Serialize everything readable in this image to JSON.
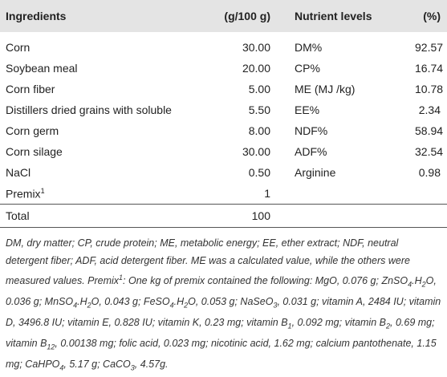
{
  "table": {
    "header": [
      "Ingredients",
      "(g/100 g)",
      "Nutrient levels",
      "(%)"
    ],
    "rows": [
      {
        "ingredient": "Corn",
        "amount": "30.00",
        "nutrient": "DM%",
        "level": "92.57"
      },
      {
        "ingredient": "Soybean meal",
        "amount": "20.00",
        "nutrient": "CP%",
        "level": "16.74"
      },
      {
        "ingredient": "Corn fiber",
        "amount": "5.00",
        "nutrient": "ME (MJ /kg)",
        "level": "10.78"
      },
      {
        "ingredient": "Distillers dried grains with soluble",
        "amount": "5.50",
        "nutrient": "EE%",
        "level": "2.34"
      },
      {
        "ingredient": "Corn germ",
        "amount": "8.00",
        "nutrient": "NDF%",
        "level": "58.94"
      },
      {
        "ingredient": "Corn silage",
        "amount": "30.00",
        "nutrient": "ADF%",
        "level": "32.54"
      },
      {
        "ingredient": "NaCl",
        "amount": "0.50",
        "nutrient": "Arginine",
        "level": "0.98"
      },
      {
        "ingredient": "Premix",
        "ingredient_note": "1",
        "amount": "1"
      },
      {
        "ingredient": "Total",
        "amount": "100"
      }
    ]
  },
  "footnote": [
    "DM, dry matter; CP, crude protein; ME, metabolic energy; EE, ether extract; NDF, neutral detergent fiber; ADF, acid detergent fiber. ME was a calculated value, while the others were measured values. Premix",
    "1",
    ": One kg of premix contained the following: MgO, 0.076 g; ZnSO",
    "4",
    ".H",
    "2",
    "O, 0.036 g; MnSO",
    "4",
    ".H",
    "2",
    "O, 0.043 g; FeSO",
    "4",
    ".H",
    "2",
    "O, 0.053 g; NaSeO",
    "3",
    ", 0.031 g; vitamin A, 2484 IU; vitamin D, 3496.8 IU; vitamin E, 0.828 IU; vitamin K, 0.23 mg; vitamin B",
    "1",
    ", 0.092 mg; vitamin B",
    "2",
    ", 0.69 mg; vitamin B",
    "12",
    ", 0.00138 mg; folic acid, 0.023 mg; nicotinic acid, 1.62 mg; calcium pantothenate, 1.15 mg; CaHPO",
    "4",
    ", 5.17 g; CaCO",
    "3",
    ", 4.57g."
  ]
}
